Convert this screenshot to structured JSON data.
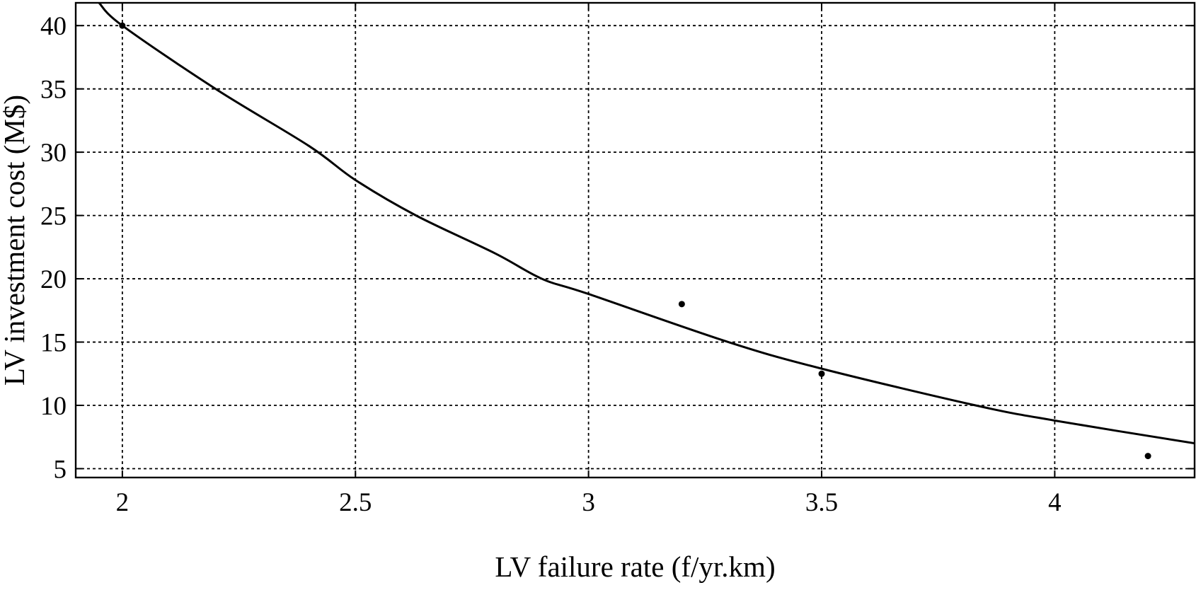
{
  "chart_data": {
    "type": "scatter",
    "xlabel": "LV failure rate (f/yr.km)",
    "ylabel": "LV investment cost (M$)",
    "xlim": [
      1.9,
      4.3
    ],
    "ylim": [
      4.3,
      41.8
    ],
    "xticks": [
      2,
      2.5,
      3,
      3.5,
      4
    ],
    "xtick_labels": [
      "2",
      "2.5",
      "3",
      "3.5",
      "4"
    ],
    "yticks": [
      5,
      10,
      15,
      20,
      25,
      30,
      35,
      40
    ],
    "ytick_labels": [
      "5",
      "10",
      "15",
      "20",
      "25",
      "30",
      "35",
      "40"
    ],
    "grid": true,
    "legend": "none",
    "series": [
      {
        "kind": "points",
        "x": [
          2.0,
          3.2,
          3.5,
          4.2
        ],
        "y": [
          40.0,
          18.0,
          12.5,
          6.0
        ]
      },
      {
        "kind": "fitted-curve",
        "x": [
          1.95,
          2.0,
          2.2,
          2.4,
          2.5,
          2.63,
          2.8,
          2.9,
          3.0,
          3.3,
          3.5,
          3.83,
          4.0,
          4.3
        ],
        "y": [
          41.8,
          40.0,
          35.0,
          30.5,
          27.8,
          25.0,
          22.0,
          20.0,
          18.8,
          15.0,
          12.9,
          10.0,
          8.8,
          7.0
        ]
      }
    ],
    "colors": {
      "ink": "#000000",
      "background": "#ffffff"
    }
  }
}
